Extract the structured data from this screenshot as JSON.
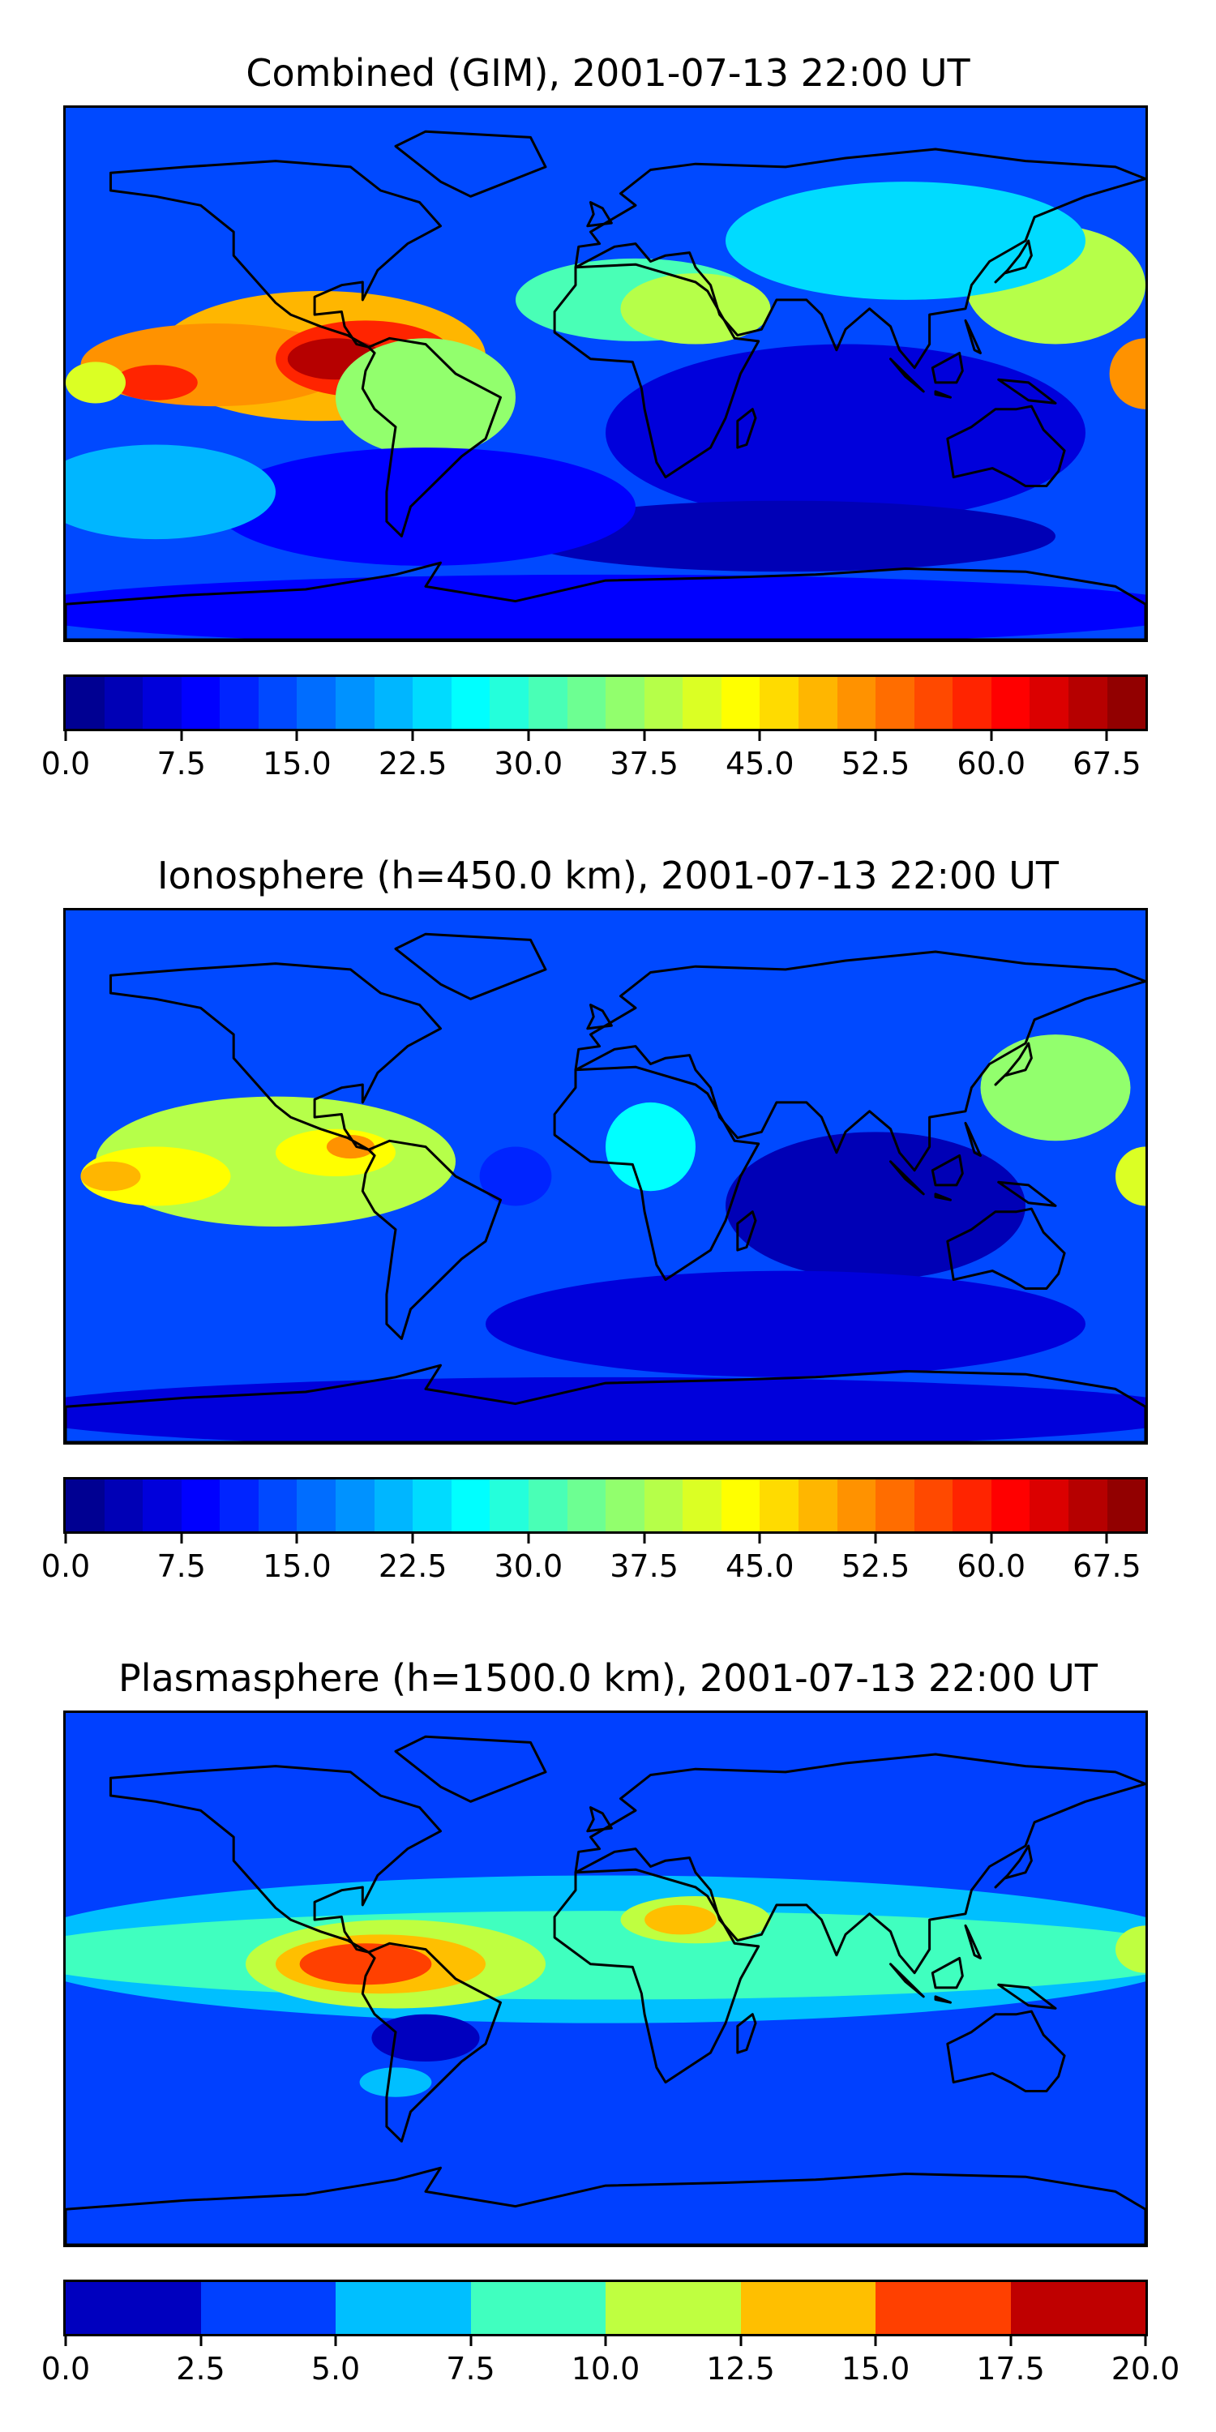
{
  "chart_data": [
    {
      "type": "heatmap",
      "title": "Combined (GIM), 2001-07-13 22:00 UT",
      "colorbar": {
        "min": 0,
        "max": 70,
        "levels": 28,
        "tick_labels": [
          "0.0",
          "7.5",
          "15.0",
          "22.5",
          "30.0",
          "37.5",
          "45.0",
          "52.5",
          "60.0",
          "67.5"
        ],
        "tick_values": [
          0,
          7.5,
          15,
          22.5,
          30,
          37.5,
          45,
          52.5,
          60,
          67.5
        ]
      },
      "background_value": 14,
      "features": [
        {
          "lon": -95,
          "lat": 6,
          "rx": 55,
          "ry": 22,
          "value": 48
        },
        {
          "lon": -130,
          "lat": 3,
          "rx": 45,
          "ry": 14,
          "value": 50
        },
        {
          "lon": -80,
          "lat": 5,
          "rx": 30,
          "ry": 13,
          "value": 58
        },
        {
          "lon": -90,
          "lat": 5,
          "rx": 16,
          "ry": 7,
          "value": 65
        },
        {
          "lon": -150,
          "lat": -3,
          "rx": 14,
          "ry": 6,
          "value": 58
        },
        {
          "lon": -170,
          "lat": -3,
          "rx": 10,
          "ry": 7,
          "value": 40
        },
        {
          "lon": -60,
          "lat": -8,
          "rx": 30,
          "ry": 20,
          "value": 37
        },
        {
          "lon": 10,
          "lat": 25,
          "rx": 40,
          "ry": 14,
          "value": 32
        },
        {
          "lon": 30,
          "lat": 22,
          "rx": 25,
          "ry": 12,
          "value": 39
        },
        {
          "lon": 150,
          "lat": 30,
          "rx": 30,
          "ry": 20,
          "value": 38
        },
        {
          "lon": 180,
          "lat": 0,
          "rx": 12,
          "ry": 12,
          "value": 52
        },
        {
          "lon": 100,
          "lat": 45,
          "rx": 60,
          "ry": 20,
          "value": 24
        },
        {
          "lon": 80,
          "lat": -20,
          "rx": 80,
          "ry": 30,
          "value": 6
        },
        {
          "lon": 60,
          "lat": -55,
          "rx": 90,
          "ry": 12,
          "value": 4
        },
        {
          "lon": -60,
          "lat": -45,
          "rx": 70,
          "ry": 20,
          "value": 9
        },
        {
          "lon": -150,
          "lat": -40,
          "rx": 40,
          "ry": 16,
          "value": 22
        },
        {
          "lon": 0,
          "lat": -80,
          "rx": 200,
          "ry": 12,
          "value": 8
        }
      ]
    },
    {
      "type": "heatmap",
      "title": "Ionosphere  (h=450.0 km), 2001-07-13 22:00 UT",
      "colorbar": {
        "min": 0,
        "max": 70,
        "levels": 28,
        "tick_labels": [
          "0.0",
          "7.5",
          "15.0",
          "22.5",
          "30.0",
          "37.5",
          "45.0",
          "52.5",
          "60.0",
          "67.5"
        ],
        "tick_values": [
          0,
          7.5,
          15,
          22.5,
          30,
          37.5,
          45,
          52.5,
          60,
          67.5
        ]
      },
      "background_value": 13,
      "features": [
        {
          "lon": -110,
          "lat": 5,
          "rx": 60,
          "ry": 22,
          "value": 38
        },
        {
          "lon": -150,
          "lat": 0,
          "rx": 25,
          "ry": 10,
          "value": 43
        },
        {
          "lon": -90,
          "lat": 8,
          "rx": 20,
          "ry": 8,
          "value": 44
        },
        {
          "lon": -165,
          "lat": 0,
          "rx": 10,
          "ry": 5,
          "value": 48
        },
        {
          "lon": -85,
          "lat": 10,
          "rx": 8,
          "ry": 4,
          "value": 52
        },
        {
          "lon": 15,
          "lat": 10,
          "rx": 15,
          "ry": 15,
          "value": 25
        },
        {
          "lon": 150,
          "lat": 30,
          "rx": 25,
          "ry": 18,
          "value": 35
        },
        {
          "lon": 180,
          "lat": 0,
          "rx": 10,
          "ry": 10,
          "value": 42
        },
        {
          "lon": 90,
          "lat": -10,
          "rx": 50,
          "ry": 25,
          "value": 4
        },
        {
          "lon": 60,
          "lat": -50,
          "rx": 100,
          "ry": 18,
          "value": 5
        },
        {
          "lon": -30,
          "lat": 0,
          "rx": 12,
          "ry": 10,
          "value": 10
        },
        {
          "lon": 0,
          "lat": -80,
          "rx": 200,
          "ry": 12,
          "value": 7
        }
      ]
    },
    {
      "type": "heatmap",
      "title": "Plasmasphere (h=1500.0 km), 2001-07-13 22:00 UT",
      "colorbar": {
        "min": 0,
        "max": 20,
        "levels": 8,
        "tick_labels": [
          "0.0",
          "2.5",
          "5.0",
          "7.5",
          "10.0",
          "12.5",
          "15.0",
          "17.5",
          "20.0"
        ],
        "tick_values": [
          0,
          2.5,
          5,
          7.5,
          10,
          12.5,
          15,
          17.5,
          20
        ]
      },
      "background_value": 3,
      "features": [
        {
          "lon": 0,
          "lat": 10,
          "rx": 200,
          "ry": 25,
          "value": 6
        },
        {
          "lon": 0,
          "lat": 8,
          "rx": 200,
          "ry": 15,
          "value": 8.5
        },
        {
          "lon": -70,
          "lat": 5,
          "rx": 50,
          "ry": 15,
          "value": 11
        },
        {
          "lon": -75,
          "lat": 5,
          "rx": 35,
          "ry": 10,
          "value": 13
        },
        {
          "lon": -80,
          "lat": 5,
          "rx": 22,
          "ry": 7,
          "value": 16
        },
        {
          "lon": 30,
          "lat": 20,
          "rx": 25,
          "ry": 8,
          "value": 12
        },
        {
          "lon": 25,
          "lat": 20,
          "rx": 12,
          "ry": 5,
          "value": 14
        },
        {
          "lon": 180,
          "lat": 10,
          "rx": 10,
          "ry": 8,
          "value": 11
        },
        {
          "lon": -60,
          "lat": -20,
          "rx": 18,
          "ry": 8,
          "value": 1.5
        },
        {
          "lon": -70,
          "lat": -35,
          "rx": 12,
          "ry": 5,
          "value": 7
        },
        {
          "lon": 0,
          "lat": 50,
          "rx": 200,
          "ry": 12,
          "value": 4
        }
      ]
    }
  ]
}
